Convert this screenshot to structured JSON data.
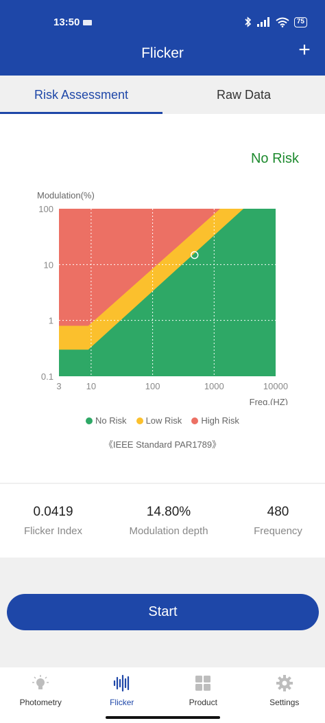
{
  "status_bar": {
    "time": "13:50",
    "battery": "75"
  },
  "header": {
    "title": "Flicker",
    "add_label": "+"
  },
  "tabs": [
    {
      "label": "Risk Assessment",
      "active": true
    },
    {
      "label": "Raw Data",
      "active": false
    }
  ],
  "result": {
    "text": "No Risk",
    "color": "#1d8a2e"
  },
  "chart_data": {
    "type": "area",
    "ylabel": "Modulation(%)",
    "xlabel": "Freq.(HZ)",
    "x_scale": "log",
    "y_scale": "log",
    "xlim": [
      3,
      10000
    ],
    "ylim": [
      0.1,
      100
    ],
    "x_ticks": [
      "3",
      "10",
      "100",
      "1000",
      "10000"
    ],
    "y_ticks": [
      "100",
      "10",
      "1",
      "0.1"
    ],
    "grid": true,
    "regions": [
      {
        "name": "No Risk",
        "color": "#2ea866",
        "boundary_points": [
          [
            3,
            0.3
          ],
          [
            9,
            0.3
          ],
          [
            3000,
            100
          ]
        ]
      },
      {
        "name": "Low Risk",
        "color": "#fbc02d",
        "boundary_points": [
          [
            3,
            0.8
          ],
          [
            9,
            0.8
          ],
          [
            1250,
            100
          ]
        ]
      },
      {
        "name": "High Risk",
        "color": "#ec7064"
      }
    ],
    "point": {
      "x": 480,
      "y": 14.8
    },
    "legend": [
      "No Risk",
      "Low Risk",
      "High Risk"
    ],
    "legend_position": "bottom",
    "note": "《IEEE Standard PAR1789》"
  },
  "metrics": [
    {
      "value": "0.0419",
      "label": "Flicker Index"
    },
    {
      "value": "14.80%",
      "label": "Modulation depth"
    },
    {
      "value": "480",
      "label": "Frequency"
    }
  ],
  "start_label": "Start",
  "nav": [
    {
      "label": "Photometry",
      "icon": "bulb-icon",
      "active": false
    },
    {
      "label": "Flicker",
      "icon": "waveform-icon",
      "active": true
    },
    {
      "label": "Product",
      "icon": "grid-icon",
      "active": false
    },
    {
      "label": "Settings",
      "icon": "gear-icon",
      "active": false
    }
  ],
  "colors": {
    "primary": "#1e47a8",
    "no_risk": "#2ea866",
    "low_risk": "#fbc02d",
    "high_risk": "#ec7064"
  }
}
